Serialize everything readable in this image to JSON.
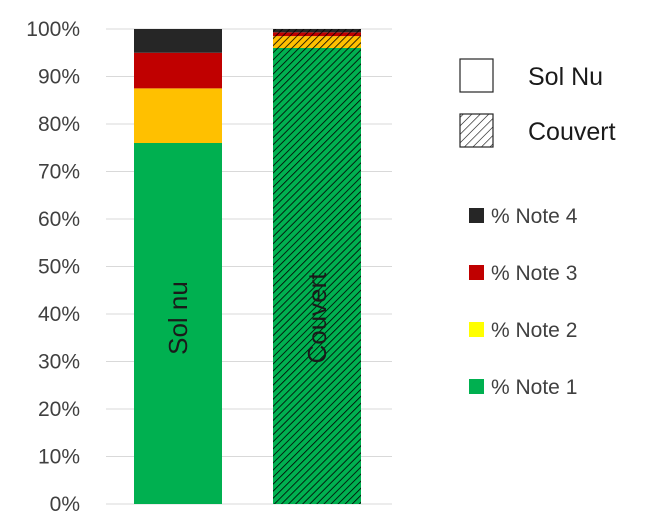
{
  "chart_data": {
    "type": "bar",
    "stacked": true,
    "categories": [
      "Sol nu",
      "Couvert"
    ],
    "ylim": [
      0,
      100
    ],
    "yticks": [
      "0%",
      "10%",
      "20%",
      "30%",
      "40%",
      "50%",
      "60%",
      "70%",
      "80%",
      "90%",
      "100%"
    ],
    "grid": true,
    "series": [
      {
        "name": "% Note 1",
        "color": "#00b050",
        "values": [
          76,
          96
        ]
      },
      {
        "name": "% Note 2",
        "color": "#ffc000",
        "values": [
          11.5,
          2.5
        ]
      },
      {
        "name": "% Note 3",
        "color": "#c00000",
        "values": [
          7.5,
          0.8
        ]
      },
      {
        "name": "% Note 4",
        "color": "#262626",
        "values": [
          5,
          0.7
        ]
      }
    ],
    "legend_swatch_colors": [
      "#262626",
      "#c00000",
      "#ffff00",
      "#00b050"
    ],
    "pattern_legend": [
      {
        "label": "Sol Nu",
        "pattern": "none"
      },
      {
        "label": "Couvert",
        "pattern": "diagonal-hatch"
      }
    ],
    "bar_patterns": [
      "none",
      "diagonal-hatch"
    ],
    "legend_position": "right"
  }
}
